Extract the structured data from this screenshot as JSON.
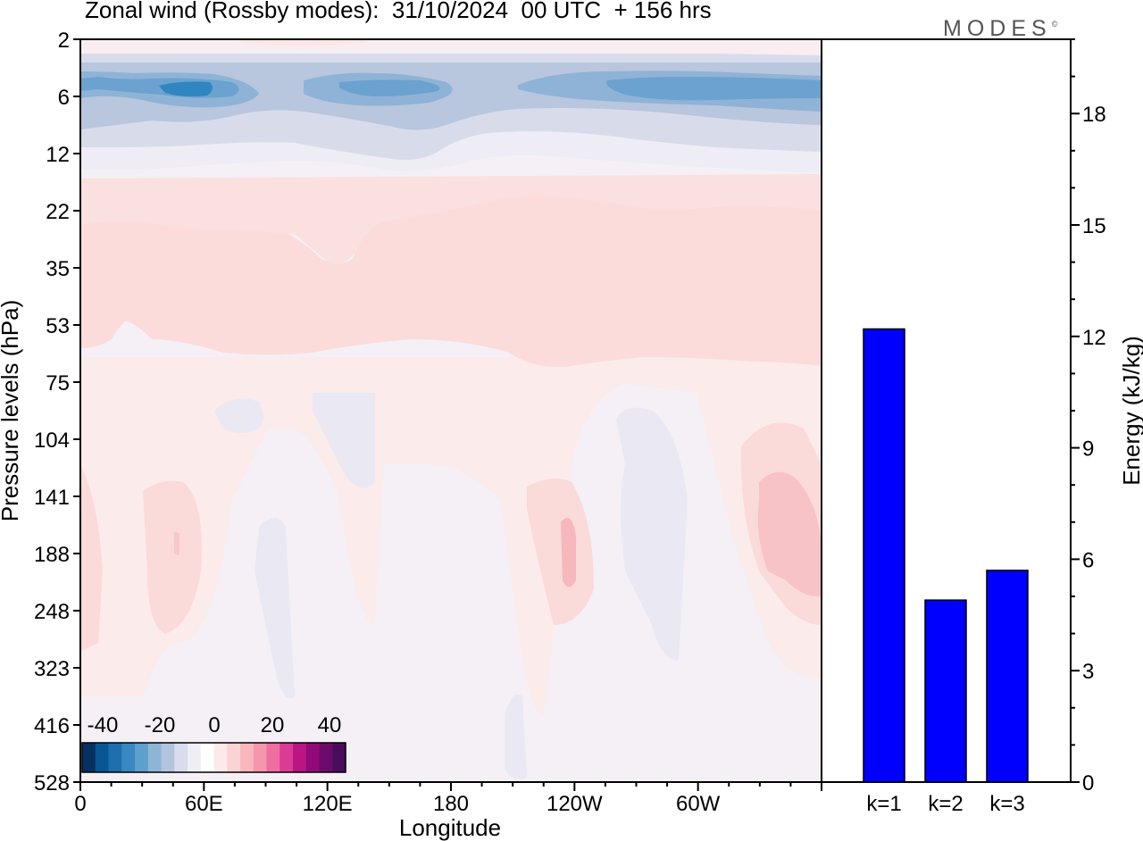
{
  "title": "Zonal wind (Rossby modes):  31/10/2024  00 UTC  + 156 hrs",
  "logo": {
    "text": "MODES",
    "mark": "©"
  },
  "chart_data": [
    {
      "type": "heatmap",
      "xlabel": "Longitude",
      "ylabel": "Pressure levels (hPa)",
      "x_ticks": [
        "0",
        "60E",
        "120E",
        "180",
        "120W",
        "60W"
      ],
      "x_range": [
        0,
        360
      ],
      "y_ticks": [
        "2",
        "6",
        "12",
        "22",
        "35",
        "53",
        "75",
        "104",
        "141",
        "188",
        "248",
        "323",
        "416",
        "528"
      ],
      "colorbar": {
        "tick_labels": [
          "-40",
          "-20",
          "0",
          "20",
          "40"
        ],
        "colors": [
          "#053061",
          "#0a5593",
          "#1f6eb0",
          "#3a88c0",
          "#5d9fcd",
          "#8cb5d6",
          "#b4c4df",
          "#d8dcec",
          "#eeeff6",
          "#ffffff",
          "#fde9e9",
          "#fbd3d3",
          "#f9b7bd",
          "#f596ac",
          "#ef6ea0",
          "#dc3b94",
          "#bb1583",
          "#93097a",
          "#6d0a6b",
          "#4a0d5d"
        ]
      },
      "bands": [
        {
          "levels": "2-4",
          "value": 0,
          "note": "near zero / faint pink"
        },
        {
          "levels": "4-12",
          "value": -20,
          "note": "easterly band, cores about -25 near 45E, 130E and 60W"
        },
        {
          "levels": "12-18",
          "value": 0
        },
        {
          "levels": "18-65",
          "value": 8,
          "note": "westerly band"
        },
        {
          "levels": "65-528",
          "value": 2,
          "note": "weak; +10 to +15 cells near 10E, 45E, 120W and 20W; about -5 cells near 70E, 90E and 70W"
        }
      ]
    },
    {
      "type": "bar",
      "ylabel": "Energy (kJ/kg)",
      "categories": [
        "k=1",
        "k=2",
        "k=3"
      ],
      "values": [
        12.2,
        4.9,
        5.7
      ],
      "ylim": [
        0,
        20
      ],
      "y_ticks": [
        "0",
        "3",
        "6",
        "9",
        "12",
        "15",
        "18"
      ],
      "bar_color": "#0000ff"
    }
  ]
}
